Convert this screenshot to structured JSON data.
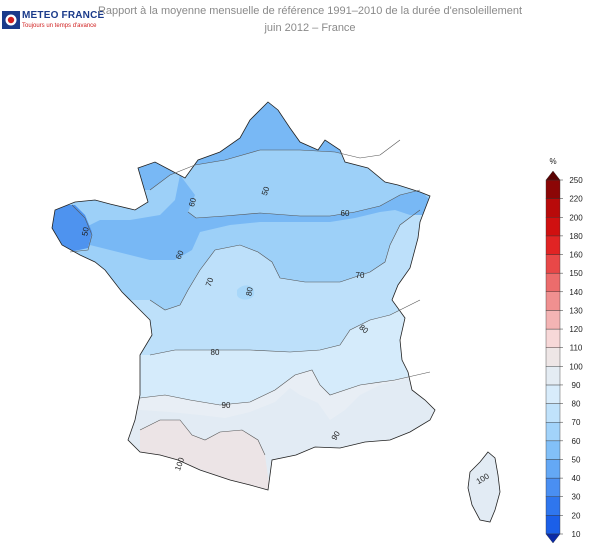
{
  "logo": {
    "name": "METEO FRANCE",
    "tagline": "Toujours un temps d'avance"
  },
  "title": {
    "line1": "Rapport à la moyenne mensuelle de référence 1991–2010 de la durée d'ensoleillement",
    "line2": "juin 2012 – France"
  },
  "map": {
    "contour_labels": [
      {
        "text": "50",
        "rot": -70
      },
      {
        "text": "50",
        "rot": -80
      },
      {
        "text": "60",
        "rot": -75
      },
      {
        "text": "60",
        "rot": 0
      },
      {
        "text": "60",
        "rot": -65
      },
      {
        "text": "70",
        "rot": -70
      },
      {
        "text": "70",
        "rot": 0
      },
      {
        "text": "80",
        "rot": -80
      },
      {
        "text": "80",
        "rot": 40
      },
      {
        "text": "80",
        "rot": 0
      },
      {
        "text": "90",
        "rot": 0
      },
      {
        "text": "90",
        "rot": -60
      },
      {
        "text": "100",
        "rot": -70
      },
      {
        "text": "100",
        "rot": -30
      }
    ]
  },
  "colorbar": {
    "unit": "%",
    "ticks": [
      "10",
      "20",
      "30",
      "40",
      "50",
      "60",
      "70",
      "80",
      "90",
      "100",
      "110",
      "120",
      "130",
      "140",
      "150",
      "160",
      "180",
      "200",
      "220",
      "250"
    ],
    "colors": [
      "#1b5fe8",
      "#2f76ee",
      "#4a8ff2",
      "#64a8f5",
      "#82c0f8",
      "#a2d3fa",
      "#c0e2fb",
      "#d8ecfb",
      "#e4ecf3",
      "#eee6e6",
      "#f7d8d8",
      "#f4b4b4",
      "#f09090",
      "#ec6c6c",
      "#e84848",
      "#e12424",
      "#d01010",
      "#b80a0a",
      "#8c0606"
    ],
    "low_color": "#0a2aa8",
    "high_color": "#5a0202"
  }
}
